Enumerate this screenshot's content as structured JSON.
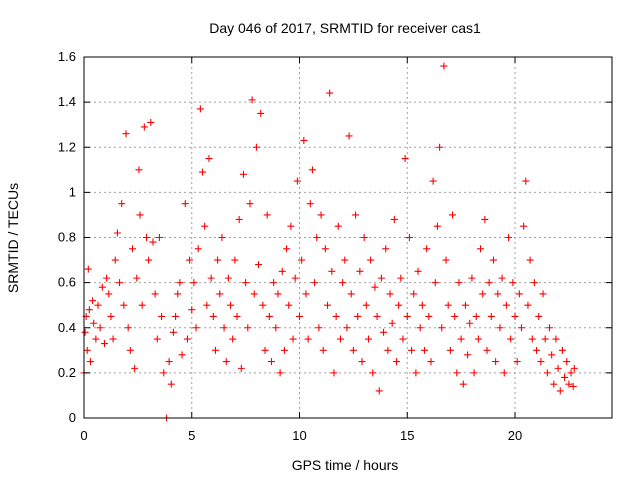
{
  "chart_data": {
    "type": "scatter",
    "title": "Day 046 of 2017, SRMTID for receiver cas1",
    "xlabel": "GPS time / hours",
    "ylabel": "SRMTID / TECUs",
    "xlim": [
      0,
      24.5
    ],
    "ylim": [
      0,
      1.6
    ],
    "xticks": [
      0,
      5,
      10,
      15,
      20
    ],
    "xtick_labels": [
      "0",
      "5",
      "10",
      "15",
      "20"
    ],
    "yticks": [
      0,
      0.2,
      0.4,
      0.6,
      0.8,
      1.0,
      1.2,
      1.4,
      1.6
    ],
    "ytick_labels": [
      "0",
      "0.2",
      "0.4",
      "0.6",
      "0.8",
      "1",
      "1.2",
      "1.4",
      "1.6"
    ],
    "grid": true,
    "marker": "plus",
    "color": "#ff0000",
    "series": [
      {
        "name": "SRMTID",
        "points": [
          [
            0.0,
            0.2
          ],
          [
            0.05,
            0.38
          ],
          [
            0.1,
            0.45
          ],
          [
            0.15,
            0.3
          ],
          [
            0.2,
            0.66
          ],
          [
            0.25,
            0.48
          ],
          [
            0.3,
            0.25
          ],
          [
            0.4,
            0.52
          ],
          [
            0.45,
            0.42
          ],
          [
            0.55,
            0.35
          ],
          [
            0.65,
            0.5
          ],
          [
            0.75,
            0.4
          ],
          [
            0.85,
            0.58
          ],
          [
            0.95,
            0.33
          ],
          [
            1.05,
            0.62
          ],
          [
            1.15,
            0.55
          ],
          [
            1.25,
            0.45
          ],
          [
            1.35,
            0.35
          ],
          [
            1.45,
            0.7
          ],
          [
            1.55,
            0.82
          ],
          [
            1.65,
            0.6
          ],
          [
            1.75,
            0.95
          ],
          [
            1.85,
            0.5
          ],
          [
            1.95,
            1.26
          ],
          [
            2.05,
            0.4
          ],
          [
            2.15,
            0.3
          ],
          [
            2.25,
            0.75
          ],
          [
            2.35,
            0.22
          ],
          [
            2.45,
            0.62
          ],
          [
            2.55,
            1.1
          ],
          [
            2.6,
            0.9
          ],
          [
            2.7,
            0.5
          ],
          [
            2.8,
            1.29
          ],
          [
            2.9,
            0.8
          ],
          [
            3.0,
            0.7
          ],
          [
            3.1,
            1.31
          ],
          [
            3.2,
            0.78
          ],
          [
            3.3,
            0.55
          ],
          [
            3.4,
            0.35
          ],
          [
            3.5,
            0.8
          ],
          [
            3.6,
            0.45
          ],
          [
            3.7,
            0.2
          ],
          [
            3.83,
            0.0
          ],
          [
            3.95,
            0.25
          ],
          [
            4.05,
            0.15
          ],
          [
            4.15,
            0.38
          ],
          [
            4.25,
            0.45
          ],
          [
            4.35,
            0.55
          ],
          [
            4.45,
            0.6
          ],
          [
            4.55,
            0.28
          ],
          [
            4.7,
            0.95
          ],
          [
            4.8,
            0.35
          ],
          [
            4.9,
            0.7
          ],
          [
            5.0,
            0.48
          ],
          [
            5.1,
            0.6
          ],
          [
            5.2,
            0.4
          ],
          [
            5.3,
            0.75
          ],
          [
            5.4,
            1.37
          ],
          [
            5.5,
            1.09
          ],
          [
            5.6,
            0.85
          ],
          [
            5.7,
            0.5
          ],
          [
            5.8,
            1.15
          ],
          [
            5.9,
            0.62
          ],
          [
            6.0,
            0.45
          ],
          [
            6.1,
            0.3
          ],
          [
            6.2,
            0.7
          ],
          [
            6.3,
            0.55
          ],
          [
            6.4,
            0.8
          ],
          [
            6.5,
            0.4
          ],
          [
            6.6,
            0.25
          ],
          [
            6.7,
            0.62
          ],
          [
            6.8,
            0.5
          ],
          [
            6.9,
            0.35
          ],
          [
            7.0,
            0.7
          ],
          [
            7.1,
            0.45
          ],
          [
            7.2,
            0.88
          ],
          [
            7.3,
            0.22
          ],
          [
            7.4,
            1.08
          ],
          [
            7.5,
            0.6
          ],
          [
            7.6,
            0.4
          ],
          [
            7.7,
            0.95
          ],
          [
            7.8,
            1.41
          ],
          [
            7.9,
            0.55
          ],
          [
            8.0,
            1.2
          ],
          [
            8.1,
            0.68
          ],
          [
            8.2,
            1.35
          ],
          [
            8.3,
            0.5
          ],
          [
            8.4,
            0.3
          ],
          [
            8.5,
            0.9
          ],
          [
            8.6,
            0.45
          ],
          [
            8.7,
            0.25
          ],
          [
            8.8,
            0.6
          ],
          [
            8.9,
            0.4
          ],
          [
            9.0,
            0.55
          ],
          [
            9.1,
            0.2
          ],
          [
            9.2,
            0.65
          ],
          [
            9.3,
            0.3
          ],
          [
            9.4,
            0.75
          ],
          [
            9.5,
            0.5
          ],
          [
            9.6,
            0.85
          ],
          [
            9.7,
            0.35
          ],
          [
            9.8,
            0.62
          ],
          [
            9.9,
            1.05
          ],
          [
            10.0,
            0.45
          ],
          [
            10.1,
            0.7
          ],
          [
            10.2,
            1.23
          ],
          [
            10.3,
            0.55
          ],
          [
            10.4,
            0.35
          ],
          [
            10.5,
            0.95
          ],
          [
            10.6,
            1.1
          ],
          [
            10.7,
            0.6
          ],
          [
            10.8,
            0.8
          ],
          [
            10.9,
            0.4
          ],
          [
            11.0,
            0.9
          ],
          [
            11.1,
            0.3
          ],
          [
            11.2,
            0.75
          ],
          [
            11.3,
            0.5
          ],
          [
            11.4,
            1.44
          ],
          [
            11.5,
            0.65
          ],
          [
            11.6,
            0.2
          ],
          [
            11.7,
            0.45
          ],
          [
            11.8,
            0.85
          ],
          [
            11.9,
            0.35
          ],
          [
            12.0,
            0.6
          ],
          [
            12.1,
            0.7
          ],
          [
            12.2,
            0.4
          ],
          [
            12.3,
            1.25
          ],
          [
            12.4,
            0.55
          ],
          [
            12.5,
            0.3
          ],
          [
            12.6,
            0.9
          ],
          [
            12.7,
            0.45
          ],
          [
            12.8,
            0.65
          ],
          [
            12.9,
            0.25
          ],
          [
            13.0,
            0.8
          ],
          [
            13.1,
            0.5
          ],
          [
            13.2,
            0.35
          ],
          [
            13.3,
            0.7
          ],
          [
            13.4,
            0.2
          ],
          [
            13.5,
            0.58
          ],
          [
            13.6,
            0.45
          ],
          [
            13.7,
            0.12
          ],
          [
            13.8,
            0.62
          ],
          [
            13.9,
            0.38
          ],
          [
            14.0,
            0.75
          ],
          [
            14.1,
            0.3
          ],
          [
            14.2,
            0.55
          ],
          [
            14.3,
            0.42
          ],
          [
            14.4,
            0.88
          ],
          [
            14.5,
            0.25
          ],
          [
            14.6,
            0.5
          ],
          [
            14.7,
            0.62
          ],
          [
            14.8,
            0.35
          ],
          [
            14.9,
            1.15
          ],
          [
            15.0,
            0.45
          ],
          [
            15.1,
            0.8
          ],
          [
            15.2,
            0.3
          ],
          [
            15.3,
            0.55
          ],
          [
            15.4,
            0.2
          ],
          [
            15.5,
            0.65
          ],
          [
            15.6,
            0.4
          ],
          [
            15.7,
            0.5
          ],
          [
            15.8,
            0.3
          ],
          [
            15.9,
            0.75
          ],
          [
            16.0,
            0.45
          ],
          [
            16.1,
            0.25
          ],
          [
            16.2,
            1.05
          ],
          [
            16.3,
            0.6
          ],
          [
            16.4,
            0.85
          ],
          [
            16.5,
            1.2
          ],
          [
            16.6,
            0.4
          ],
          [
            16.7,
            1.56
          ],
          [
            16.8,
            0.7
          ],
          [
            16.9,
            0.5
          ],
          [
            17.0,
            0.3
          ],
          [
            17.1,
            0.9
          ],
          [
            17.2,
            0.45
          ],
          [
            17.3,
            0.2
          ],
          [
            17.4,
            0.6
          ],
          [
            17.5,
            0.35
          ],
          [
            17.6,
            0.15
          ],
          [
            17.7,
            0.5
          ],
          [
            17.8,
            0.28
          ],
          [
            17.9,
            0.42
          ],
          [
            18.0,
            0.62
          ],
          [
            18.1,
            0.2
          ],
          [
            18.2,
            0.45
          ],
          [
            18.3,
            0.35
          ],
          [
            18.4,
            0.75
          ],
          [
            18.5,
            0.55
          ],
          [
            18.6,
            0.88
          ],
          [
            18.7,
            0.3
          ],
          [
            18.8,
            0.6
          ],
          [
            18.9,
            0.45
          ],
          [
            19.0,
            0.7
          ],
          [
            19.1,
            0.25
          ],
          [
            19.2,
            0.55
          ],
          [
            19.3,
            0.4
          ],
          [
            19.4,
            0.62
          ],
          [
            19.5,
            0.2
          ],
          [
            19.6,
            0.5
          ],
          [
            19.7,
            0.8
          ],
          [
            19.8,
            0.35
          ],
          [
            19.9,
            0.6
          ],
          [
            20.0,
            0.45
          ],
          [
            20.1,
            0.25
          ],
          [
            20.2,
            0.55
          ],
          [
            20.3,
            0.4
          ],
          [
            20.4,
            0.85
          ],
          [
            20.5,
            1.05
          ],
          [
            20.6,
            0.5
          ],
          [
            20.7,
            0.7
          ],
          [
            20.8,
            0.35
          ],
          [
            20.9,
            0.6
          ],
          [
            21.0,
            0.3
          ],
          [
            21.1,
            0.45
          ],
          [
            21.2,
            0.25
          ],
          [
            21.3,
            0.55
          ],
          [
            21.4,
            0.35
          ],
          [
            21.5,
            0.2
          ],
          [
            21.6,
            0.4
          ],
          [
            21.7,
            0.28
          ],
          [
            21.8,
            0.15
          ],
          [
            21.9,
            0.35
          ],
          [
            22.0,
            0.22
          ],
          [
            22.1,
            0.12
          ],
          [
            22.2,
            0.3
          ],
          [
            22.3,
            0.18
          ],
          [
            22.4,
            0.25
          ],
          [
            22.5,
            0.15
          ],
          [
            22.6,
            0.2
          ],
          [
            22.7,
            0.14
          ],
          [
            22.75,
            0.22
          ]
        ]
      }
    ]
  }
}
